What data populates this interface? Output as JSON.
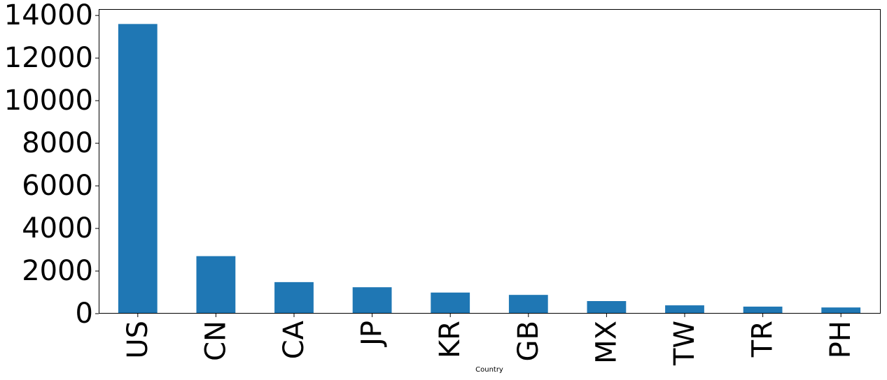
{
  "chart_data": {
    "type": "bar",
    "title": "",
    "xlabel": "Country",
    "ylabel": "",
    "categories": [
      "US",
      "CN",
      "CA",
      "JP",
      "KR",
      "GB",
      "MX",
      "TW",
      "TR",
      "PH"
    ],
    "values": [
      13600,
      2700,
      1480,
      1240,
      990,
      880,
      590,
      390,
      330,
      290
    ],
    "ylim": [
      0,
      14300
    ],
    "yticks": [
      0,
      2000,
      4000,
      6000,
      8000,
      10000,
      12000,
      14000
    ],
    "bar_color": "#1f77b4",
    "grid": false,
    "legend": "none"
  }
}
